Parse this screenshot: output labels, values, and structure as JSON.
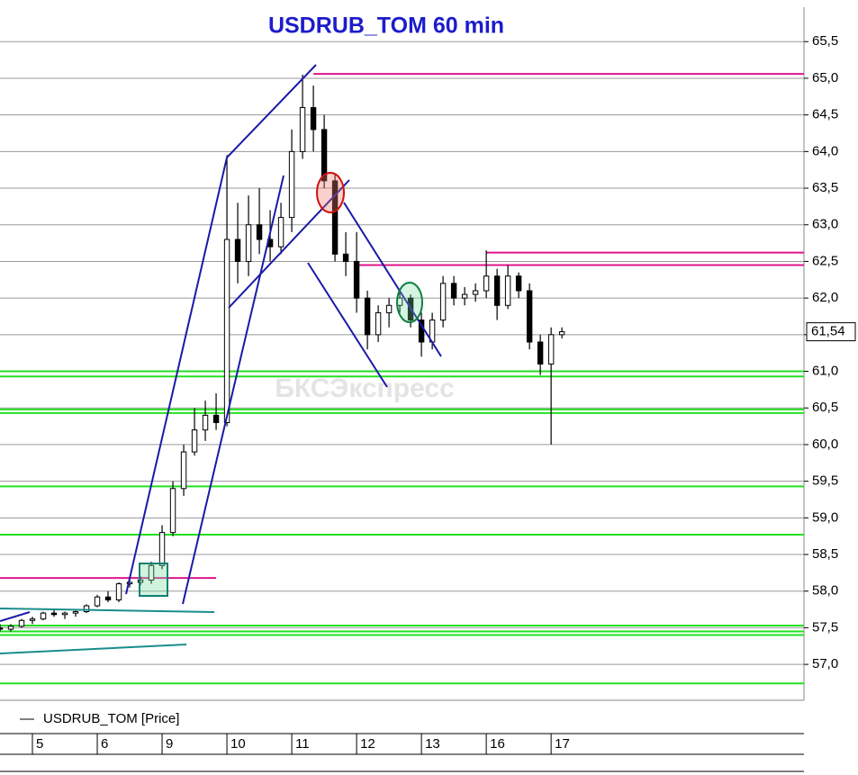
{
  "chart_data": {
    "type": "candlestick",
    "title": "USDRUB_TOM 60 min",
    "watermark": "БКСЭкспресс",
    "series": [
      {
        "name": "USDRUB_TOM [Price]",
        "up_color": "#ffffff",
        "down_color": "#000000",
        "open": [
          57.5,
          57.48,
          57.52,
          57.6,
          57.62,
          57.7,
          57.68,
          57.7,
          57.72,
          57.8,
          57.92,
          57.88,
          58.1,
          58.12,
          58.15,
          58.35,
          58.8,
          59.4,
          59.9,
          60.2,
          60.4,
          60.3,
          62.8,
          62.5,
          63.0,
          62.8,
          62.7,
          63.1,
          64.0,
          64.6,
          64.3,
          63.6,
          62.6,
          62.5,
          62.0,
          61.5,
          61.8,
          61.9,
          62.0,
          61.7,
          61.4,
          61.7,
          62.2,
          62.0,
          62.05,
          62.1,
          62.3,
          61.9,
          62.3,
          62.1,
          61.4,
          61.1,
          61.5
        ],
        "high": [
          57.55,
          57.55,
          57.62,
          57.65,
          57.72,
          57.75,
          57.72,
          57.75,
          57.82,
          57.95,
          58.0,
          58.12,
          58.18,
          58.2,
          58.4,
          58.9,
          59.5,
          60.0,
          60.5,
          60.6,
          60.7,
          63.95,
          63.3,
          63.4,
          63.5,
          63.2,
          63.3,
          64.3,
          65.05,
          64.9,
          64.5,
          63.7,
          62.9,
          62.9,
          62.1,
          61.9,
          62.0,
          62.1,
          62.05,
          61.8,
          61.8,
          62.3,
          62.3,
          62.15,
          62.2,
          62.65,
          62.4,
          62.45,
          62.35,
          62.2,
          61.5,
          61.6,
          61.6
        ],
        "low": [
          57.45,
          57.45,
          57.5,
          57.55,
          57.6,
          57.65,
          57.62,
          57.65,
          57.7,
          57.78,
          57.85,
          57.85,
          58.05,
          58.08,
          58.1,
          58.3,
          58.75,
          59.3,
          59.85,
          60.05,
          60.2,
          60.25,
          62.2,
          62.3,
          62.6,
          62.5,
          62.6,
          62.9,
          63.9,
          64.0,
          63.5,
          62.5,
          62.3,
          61.8,
          61.3,
          61.4,
          61.6,
          61.8,
          61.6,
          61.2,
          61.3,
          61.6,
          61.9,
          61.9,
          61.95,
          62.0,
          61.7,
          61.85,
          62.0,
          61.3,
          60.95,
          60.0,
          61.45
        ],
        "close": [
          57.48,
          57.52,
          57.6,
          57.62,
          57.7,
          57.68,
          57.7,
          57.72,
          57.8,
          57.92,
          57.88,
          58.1,
          58.12,
          58.15,
          58.35,
          58.8,
          59.4,
          59.9,
          60.2,
          60.4,
          60.3,
          62.8,
          62.5,
          63.0,
          62.8,
          62.7,
          63.1,
          64.0,
          64.6,
          64.3,
          63.6,
          62.6,
          62.5,
          62.0,
          61.5,
          61.8,
          61.9,
          62.0,
          61.7,
          61.4,
          61.7,
          62.2,
          62.0,
          62.05,
          62.1,
          62.3,
          61.9,
          62.3,
          62.1,
          61.4,
          61.1,
          61.5,
          61.54
        ]
      }
    ],
    "last_price": {
      "value": 61.54,
      "label": "61,54"
    },
    "levels": [
      {
        "value": 65.06,
        "color": "#e0148c",
        "from": 29
      },
      {
        "value": 62.62,
        "color": "#e0148c",
        "from": 45
      },
      {
        "value": 62.45,
        "color": "#e0148c",
        "from": 33
      },
      {
        "value": 58.18,
        "color": "#e0148c",
        "from": 0,
        "to": 20
      },
      {
        "value": 61.0,
        "color": "#22e022",
        "from": 0
      },
      {
        "value": 60.93,
        "color": "#22e022",
        "from": 0
      },
      {
        "value": 60.48,
        "color": "#22e022",
        "from": 0
      },
      {
        "value": 60.43,
        "color": "#22e022",
        "from": 0
      },
      {
        "value": 59.43,
        "color": "#22e022",
        "from": 0
      },
      {
        "value": 58.77,
        "color": "#22e022",
        "from": 0
      },
      {
        "value": 57.53,
        "color": "#22e022",
        "from": 0
      },
      {
        "value": 57.45,
        "color": "#22e022",
        "from": 0
      },
      {
        "value": 57.4,
        "color": "#22e022",
        "from": 0
      },
      {
        "value": 56.74,
        "color": "#22e022",
        "from": 0
      }
    ],
    "xlim": [
      0,
      74.4
    ],
    "xticks": [
      {
        "value": 3,
        "label": "5"
      },
      {
        "value": 9,
        "label": "6"
      },
      {
        "value": 15,
        "label": "9"
      },
      {
        "value": 21,
        "label": "10"
      },
      {
        "value": 27,
        "label": "11"
      },
      {
        "value": 33,
        "label": "12"
      },
      {
        "value": 39,
        "label": "13"
      },
      {
        "value": 45,
        "label": "16"
      },
      {
        "value": 51,
        "label": "17"
      }
    ],
    "ylim": [
      56.51,
      65.97
    ],
    "yticks": [
      {
        "value": 57.0,
        "label": "57,0"
      },
      {
        "value": 57.5,
        "label": "57,5"
      },
      {
        "value": 58.0,
        "label": "58,0"
      },
      {
        "value": 58.5,
        "label": "58,5"
      },
      {
        "value": 59.0,
        "label": "59,0"
      },
      {
        "value": 59.5,
        "label": "59,5"
      },
      {
        "value": 60.0,
        "label": "60,0"
      },
      {
        "value": 60.5,
        "label": "60,5"
      },
      {
        "value": 61.0,
        "label": "61,0"
      },
      {
        "value": 61.5,
        "label": "61,5"
      },
      {
        "value": 62.0,
        "label": "62,0"
      },
      {
        "value": 62.5,
        "label": "62,5"
      },
      {
        "value": 63.0,
        "label": "63,0"
      },
      {
        "value": 63.5,
        "label": "63,5"
      },
      {
        "value": 64.0,
        "label": "64,0"
      },
      {
        "value": 64.5,
        "label": "64,5"
      },
      {
        "value": 65.0,
        "label": "65,0"
      },
      {
        "value": 65.5,
        "label": "65,5"
      }
    ],
    "grid": true
  }
}
